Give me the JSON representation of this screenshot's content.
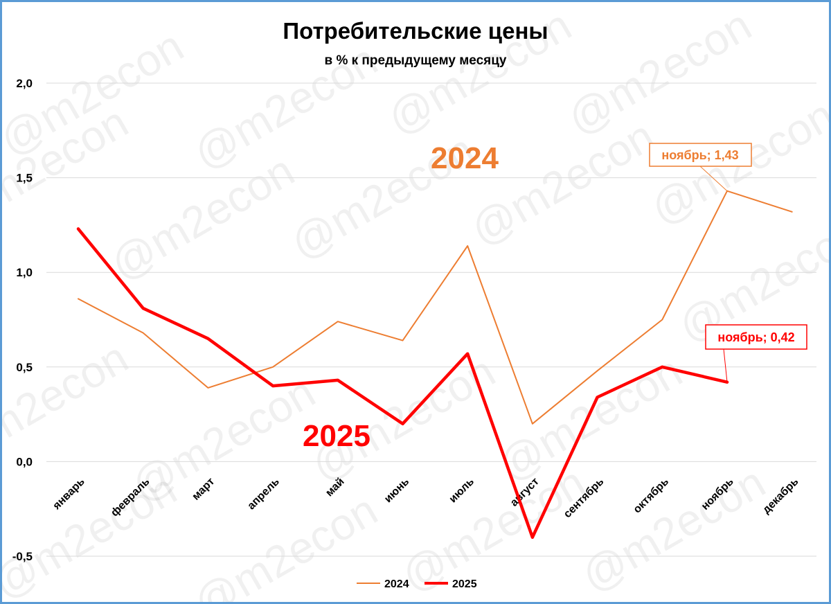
{
  "chart_data": {
    "type": "line",
    "title": "Потребительские цены",
    "subtitle": "в % к предыдущему месяцу",
    "categories": [
      "январь",
      "февраль",
      "март",
      "апрель",
      "май",
      "июнь",
      "июль",
      "август",
      "сентябрь",
      "октябрь",
      "ноябрь",
      "декабрь"
    ],
    "series": [
      {
        "name": "2024",
        "color": "#ed7d31",
        "values": [
          0.86,
          0.68,
          0.39,
          0.5,
          0.74,
          0.64,
          1.14,
          0.2,
          0.48,
          0.75,
          1.43,
          1.32
        ]
      },
      {
        "name": "2025",
        "color": "#ff0000",
        "values": [
          1.23,
          0.81,
          0.65,
          0.4,
          0.43,
          0.2,
          0.57,
          -0.4,
          0.34,
          0.5,
          0.42,
          null
        ]
      }
    ],
    "ylim": [
      -0.5,
      2.0
    ],
    "yticks": [
      "2,0",
      "1,5",
      "1,0",
      "0,5",
      "0,0",
      "-0,5"
    ],
    "ytick_values": [
      2.0,
      1.5,
      1.0,
      0.5,
      0.0,
      -0.5
    ],
    "grid": true,
    "legend": "bottom-center",
    "series_labels": {
      "s2024": "2024",
      "s2025": "2025"
    },
    "annotations": {
      "a2024": "ноябрь; 1,43",
      "a2025": "ноябрь; 0,42"
    },
    "watermark": "@m2econ"
  }
}
